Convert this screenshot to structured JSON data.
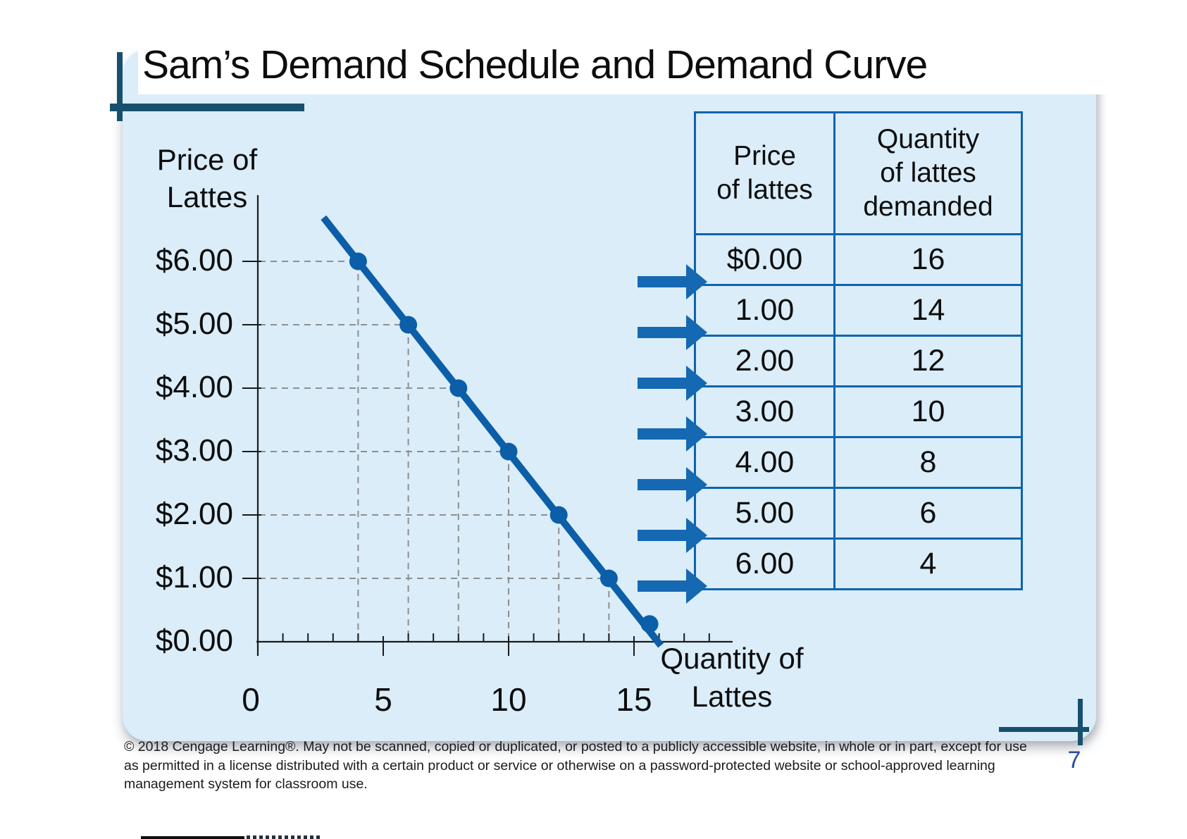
{
  "slide": {
    "title": "Sam’s Demand Schedule and Demand Curve",
    "page_number": "7",
    "copyright": "© 2018 Cengage Learning®. May not be scanned, copied or duplicated, or posted to a publicly accessible website, in whole or in part, except for use as permitted in a license distributed with a certain product or service or otherwise on a password-protected website or school-approved learning management system for classroom use."
  },
  "colors": {
    "panel_background": "#daedf9",
    "demand_curve_blue": "#0b5ea7",
    "table_border_blue": "#0f63ad",
    "arrow_blue": "#1568b2",
    "accent_teal": "#17506e",
    "guide_gray": "#8f8f8f",
    "page_number_blue": "#2b4d9e"
  },
  "chart_data": {
    "type": "line",
    "title": "Sam's Demand Schedule and Demand Curve",
    "series": [
      {
        "name": "Demand curve",
        "x": [
          4,
          6,
          8,
          10,
          12,
          14,
          16
        ],
        "y": [
          6,
          5,
          4,
          3,
          2,
          1,
          0
        ]
      }
    ],
    "ylabel": "Price of\nLattes",
    "xlabel": "Quantity of\nLattes",
    "y_ticks": {
      "values": [
        6,
        5,
        4,
        3,
        2,
        1,
        0
      ],
      "labels": [
        "$6.00",
        "$5.00",
        "$4.00",
        "$3.00",
        "$2.00",
        "$1.00",
        "$0.00"
      ]
    },
    "x_ticks": {
      "values": [
        0,
        5,
        10,
        15
      ],
      "labels": [
        "0",
        "5",
        "10",
        "15"
      ]
    },
    "x_minor_ticks": [
      1,
      2,
      3,
      4,
      6,
      7,
      8,
      9,
      11,
      12,
      13,
      14,
      16,
      17,
      18
    ],
    "xlim": [
      0,
      19
    ],
    "ylim": [
      0,
      6.6
    ],
    "grid": "dashed guide lines from each point to both axes",
    "legend_position": "none",
    "marker": "filled circle"
  },
  "table": {
    "headers": [
      "Price\nof lattes",
      "Quantity\nof lattes\ndemanded"
    ],
    "rows": [
      [
        "$0.00",
        "16"
      ],
      [
        "1.00",
        "14"
      ],
      [
        "2.00",
        "12"
      ],
      [
        "3.00",
        "10"
      ],
      [
        "4.00",
        "8"
      ],
      [
        "5.00",
        "6"
      ],
      [
        "6.00",
        "4"
      ]
    ]
  }
}
